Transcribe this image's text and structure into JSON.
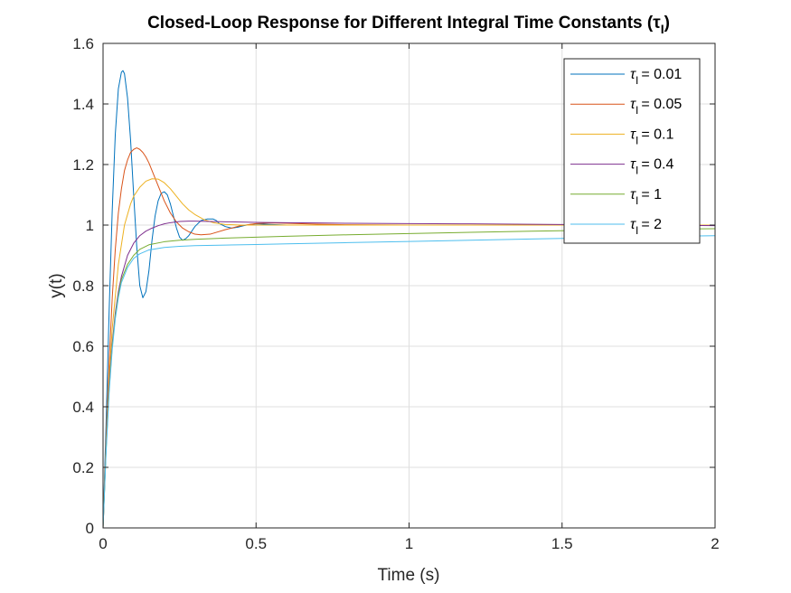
{
  "chart_data": {
    "type": "line",
    "title": "Closed-Loop Response for Different Integral Time Constants (τ",
    "title_sub": "I",
    "title_end": ")",
    "xlabel": "Time (s)",
    "ylabel": "y(t)",
    "xlim": [
      0,
      2
    ],
    "ylim": [
      0,
      1.6
    ],
    "xticks": [
      0,
      0.5,
      1,
      1.5,
      2
    ],
    "xtick_labels": [
      "0",
      "0.5",
      "1",
      "1.5",
      "2"
    ],
    "yticks": [
      0,
      0.2,
      0.4,
      0.6,
      0.8,
      1,
      1.2,
      1.4,
      1.6
    ],
    "ytick_labels": [
      "0",
      "0.2",
      "0.4",
      "0.6",
      "0.8",
      "1",
      "1.2",
      "1.4",
      "1.6"
    ],
    "grid": true,
    "legend_position": "top-right",
    "series": [
      {
        "name": "= 0.01",
        "symbol": "τ",
        "subscript": "I",
        "color": "#0072BD",
        "x": [
          0,
          0.01,
          0.02,
          0.03,
          0.04,
          0.05,
          0.06,
          0.065,
          0.07,
          0.08,
          0.09,
          0.1,
          0.11,
          0.12,
          0.13,
          0.14,
          0.15,
          0.16,
          0.17,
          0.18,
          0.19,
          0.2,
          0.21,
          0.22,
          0.23,
          0.24,
          0.25,
          0.26,
          0.27,
          0.28,
          0.29,
          0.3,
          0.32,
          0.34,
          0.36,
          0.37,
          0.38,
          0.4,
          0.42,
          0.44,
          0.46,
          0.48,
          0.5,
          0.55,
          0.6,
          0.7,
          0.8,
          1.0,
          1.2,
          1.5,
          2.0
        ],
        "y": [
          0,
          0.35,
          0.72,
          1.05,
          1.3,
          1.45,
          1.505,
          1.51,
          1.5,
          1.42,
          1.28,
          1.1,
          0.93,
          0.8,
          0.76,
          0.78,
          0.85,
          0.95,
          1.03,
          1.08,
          1.105,
          1.11,
          1.1,
          1.07,
          1.03,
          0.99,
          0.96,
          0.95,
          0.955,
          0.965,
          0.98,
          0.995,
          1.015,
          1.02,
          1.02,
          1.015,
          1.005,
          0.995,
          0.99,
          0.993,
          0.998,
          1.002,
          1.004,
          1.002,
          1.0,
          1.0,
          1.0,
          1.0,
          1.0,
          1.0,
          1.0
        ]
      },
      {
        "name": "= 0.05",
        "symbol": "τ",
        "subscript": "I",
        "color": "#D95319",
        "x": [
          0,
          0.01,
          0.02,
          0.03,
          0.04,
          0.05,
          0.06,
          0.07,
          0.08,
          0.09,
          0.1,
          0.11,
          0.12,
          0.13,
          0.14,
          0.15,
          0.16,
          0.18,
          0.2,
          0.22,
          0.24,
          0.26,
          0.28,
          0.3,
          0.32,
          0.35,
          0.4,
          0.45,
          0.5,
          0.55,
          0.6,
          0.7,
          0.8,
          1.0,
          1.5,
          2.0
        ],
        "y": [
          0,
          0.3,
          0.55,
          0.76,
          0.92,
          1.04,
          1.12,
          1.18,
          1.215,
          1.24,
          1.25,
          1.255,
          1.25,
          1.24,
          1.225,
          1.205,
          1.18,
          1.13,
          1.08,
          1.04,
          1.01,
          0.99,
          0.978,
          0.97,
          0.968,
          0.97,
          0.985,
          0.998,
          1.005,
          1.007,
          1.006,
          1.003,
          1.001,
          1.0,
          1.0,
          1.0
        ]
      },
      {
        "name": "= 0.1",
        "symbol": "τ",
        "subscript": "I",
        "color": "#EDB120",
        "x": [
          0,
          0.01,
          0.02,
          0.03,
          0.05,
          0.07,
          0.09,
          0.1,
          0.12,
          0.14,
          0.16,
          0.18,
          0.2,
          0.22,
          0.24,
          0.26,
          0.28,
          0.3,
          0.33,
          0.36,
          0.4,
          0.45,
          0.5,
          0.6,
          0.7,
          0.8,
          1.0,
          1.5,
          2.0
        ],
        "y": [
          0,
          0.28,
          0.5,
          0.66,
          0.87,
          1.0,
          1.07,
          1.095,
          1.125,
          1.145,
          1.153,
          1.152,
          1.14,
          1.12,
          1.095,
          1.07,
          1.05,
          1.035,
          1.018,
          1.008,
          1.002,
          1.0,
          1.0,
          1.0,
          1.0,
          1.0,
          1.0,
          1.0,
          1.0
        ]
      },
      {
        "name": "= 0.4",
        "symbol": "τ",
        "subscript": "I",
        "color": "#7E2F8E",
        "x": [
          0,
          0.01,
          0.02,
          0.03,
          0.04,
          0.05,
          0.06,
          0.08,
          0.1,
          0.12,
          0.14,
          0.16,
          0.18,
          0.2,
          0.22,
          0.25,
          0.28,
          0.3,
          0.35,
          0.4,
          0.45,
          0.5,
          0.6,
          0.7,
          0.8,
          1.0,
          1.2,
          1.5,
          1.8,
          2.0
        ],
        "y": [
          0,
          0.27,
          0.47,
          0.61,
          0.71,
          0.78,
          0.83,
          0.9,
          0.94,
          0.965,
          0.98,
          0.99,
          0.998,
          1.004,
          1.008,
          1.012,
          1.013,
          1.013,
          1.012,
          1.011,
          1.01,
          1.009,
          1.008,
          1.007,
          1.006,
          1.005,
          1.004,
          1.002,
          1.0,
          0.998
        ]
      },
      {
        "name": "= 1",
        "symbol": "τ",
        "subscript": "I",
        "color": "#77AC30",
        "x": [
          0,
          0.01,
          0.02,
          0.03,
          0.04,
          0.05,
          0.06,
          0.08,
          0.1,
          0.12,
          0.15,
          0.2,
          0.25,
          0.3,
          0.4,
          0.5,
          0.6,
          0.8,
          1.0,
          1.2,
          1.4,
          1.6,
          1.8,
          2.0
        ],
        "y": [
          0,
          0.26,
          0.46,
          0.6,
          0.7,
          0.77,
          0.82,
          0.87,
          0.9,
          0.92,
          0.935,
          0.945,
          0.95,
          0.953,
          0.957,
          0.96,
          0.963,
          0.968,
          0.972,
          0.976,
          0.98,
          0.983,
          0.986,
          0.988
        ]
      },
      {
        "name": "= 2",
        "symbol": "τ",
        "subscript": "I",
        "color": "#4DBEEE",
        "x": [
          0,
          0.01,
          0.02,
          0.03,
          0.04,
          0.05,
          0.06,
          0.08,
          0.1,
          0.12,
          0.15,
          0.2,
          0.25,
          0.3,
          0.4,
          0.5,
          0.6,
          0.8,
          1.0,
          1.2,
          1.4,
          1.6,
          1.8,
          2.0
        ],
        "y": [
          0,
          0.25,
          0.45,
          0.59,
          0.69,
          0.76,
          0.81,
          0.86,
          0.89,
          0.905,
          0.918,
          0.926,
          0.93,
          0.932,
          0.934,
          0.936,
          0.938,
          0.942,
          0.946,
          0.95,
          0.954,
          0.958,
          0.962,
          0.965
        ]
      }
    ]
  }
}
